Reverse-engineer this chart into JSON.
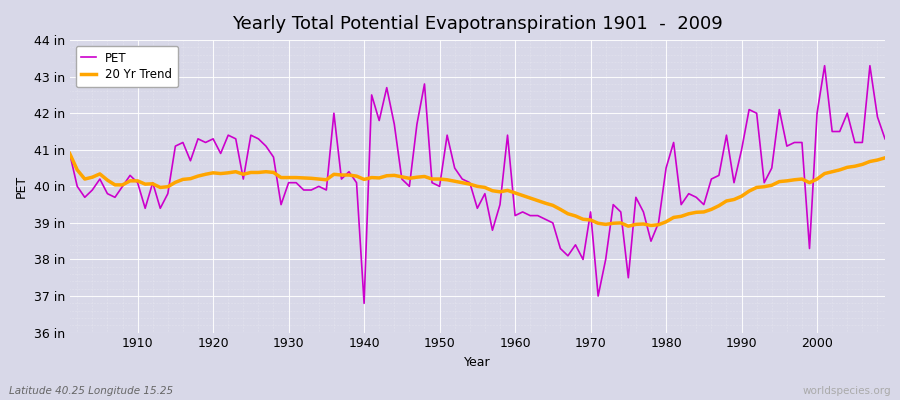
{
  "title": "Yearly Total Potential Evapotranspiration 1901  -  2009",
  "xlabel": "Year",
  "ylabel": "PET",
  "footnote_left": "Latitude 40.25 Longitude 15.25",
  "footnote_right": "worldspecies.org",
  "pet_color": "#cc00cc",
  "trend_color": "#ffa500",
  "fig_bg_color": "#dcdce8",
  "plot_bg_color": "#dcdce8",
  "ylim": [
    36,
    44
  ],
  "xlim": [
    1901,
    2009
  ],
  "xticks": [
    1910,
    1920,
    1930,
    1940,
    1950,
    1960,
    1970,
    1980,
    1990,
    2000
  ],
  "years": [
    1901,
    1902,
    1903,
    1904,
    1905,
    1906,
    1907,
    1908,
    1909,
    1910,
    1911,
    1912,
    1913,
    1914,
    1915,
    1916,
    1917,
    1918,
    1919,
    1920,
    1921,
    1922,
    1923,
    1924,
    1925,
    1926,
    1927,
    1928,
    1929,
    1930,
    1931,
    1932,
    1933,
    1934,
    1935,
    1936,
    1937,
    1938,
    1939,
    1940,
    1941,
    1942,
    1943,
    1944,
    1945,
    1946,
    1947,
    1948,
    1949,
    1950,
    1951,
    1952,
    1953,
    1954,
    1955,
    1956,
    1957,
    1958,
    1959,
    1960,
    1961,
    1962,
    1963,
    1964,
    1965,
    1966,
    1967,
    1968,
    1969,
    1970,
    1971,
    1972,
    1973,
    1974,
    1975,
    1976,
    1977,
    1978,
    1979,
    1980,
    1981,
    1982,
    1983,
    1984,
    1985,
    1986,
    1987,
    1988,
    1989,
    1990,
    1991,
    1992,
    1993,
    1994,
    1995,
    1996,
    1997,
    1998,
    1999,
    2000,
    2001,
    2002,
    2003,
    2004,
    2005,
    2006,
    2007,
    2008,
    2009
  ],
  "pet_values": [
    40.9,
    40.0,
    39.7,
    39.9,
    40.2,
    39.8,
    39.7,
    40.0,
    40.3,
    40.1,
    39.4,
    40.1,
    39.4,
    39.8,
    41.1,
    41.2,
    40.7,
    41.3,
    41.2,
    41.3,
    40.9,
    41.4,
    41.3,
    40.2,
    41.4,
    41.3,
    41.1,
    40.8,
    39.5,
    40.1,
    40.1,
    39.9,
    39.9,
    40.0,
    39.9,
    42.0,
    40.2,
    40.4,
    40.1,
    36.8,
    42.5,
    41.8,
    42.7,
    41.7,
    40.2,
    40.0,
    41.7,
    42.8,
    40.1,
    40.0,
    41.4,
    40.5,
    40.2,
    40.1,
    39.4,
    39.8,
    38.8,
    39.5,
    41.4,
    39.2,
    39.3,
    39.2,
    39.2,
    39.1,
    39.0,
    38.3,
    38.1,
    38.4,
    38.0,
    39.3,
    37.0,
    38.0,
    39.5,
    39.3,
    37.5,
    39.7,
    39.3,
    38.5,
    39.0,
    40.5,
    41.2,
    39.5,
    39.8,
    39.7,
    39.5,
    40.2,
    40.3,
    41.4,
    40.1,
    41.0,
    42.1,
    42.0,
    40.1,
    40.5,
    42.1,
    41.1,
    41.2,
    41.2,
    38.3,
    42.0,
    43.3,
    41.5,
    41.5,
    42.0,
    41.2,
    41.2,
    43.3,
    41.9,
    41.3
  ],
  "trend_values": [
    40.9,
    40.45,
    40.2,
    40.25,
    40.34,
    40.17,
    40.04,
    40.04,
    40.15,
    40.15,
    40.06,
    40.07,
    39.97,
    39.99,
    40.11,
    40.19,
    40.21,
    40.28,
    40.33,
    40.37,
    40.35,
    40.37,
    40.4,
    40.33,
    40.38,
    40.38,
    40.4,
    40.38,
    40.24,
    40.24,
    40.24,
    40.23,
    40.22,
    40.2,
    40.18,
    40.33,
    40.31,
    40.31,
    40.28,
    40.19,
    40.24,
    40.23,
    40.29,
    40.3,
    40.26,
    40.22,
    40.25,
    40.27,
    40.2,
    40.2,
    40.18,
    40.14,
    40.1,
    40.06,
    40.0,
    39.97,
    39.88,
    39.85,
    39.89,
    39.82,
    39.75,
    39.68,
    39.61,
    39.54,
    39.48,
    39.37,
    39.25,
    39.19,
    39.1,
    39.08,
    38.99,
    38.96,
    38.99,
    39.0,
    38.91,
    38.96,
    38.97,
    38.93,
    38.95,
    39.03,
    39.15,
    39.18,
    39.25,
    39.29,
    39.3,
    39.37,
    39.47,
    39.6,
    39.64,
    39.73,
    39.87,
    39.97,
    39.99,
    40.03,
    40.13,
    40.15,
    40.18,
    40.2,
    40.1,
    40.2,
    40.35,
    40.4,
    40.45,
    40.52,
    40.55,
    40.6,
    40.68,
    40.72,
    40.78
  ],
  "legend_pet": "PET",
  "legend_trend": "20 Yr Trend",
  "pet_linewidth": 1.2,
  "trend_linewidth": 2.5,
  "title_fontsize": 13,
  "label_fontsize": 9,
  "tick_fontsize": 9,
  "footnote_fontsize": 7.5
}
